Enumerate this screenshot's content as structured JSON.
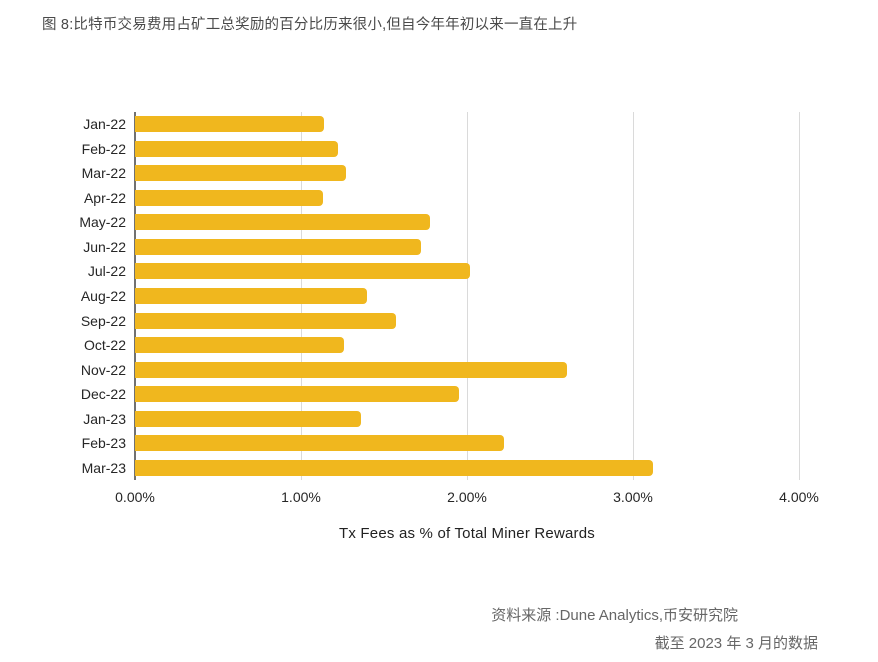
{
  "figure": {
    "title": "图 8:比特币交易费用占矿工总奖励的百分比历来很小,但自今年年初以来一直在上升",
    "source_line1": "资料来源 :Dune Analytics,币安研究院",
    "source_line2": "截至 2023 年 3 月的数据"
  },
  "colors": {
    "bar": "#f0b71e",
    "axis_line": "#717171",
    "gridline": "#dadada",
    "title_text": "#4a4a4a",
    "tick_text": "#262626",
    "source_text": "#666666"
  },
  "chart_data": {
    "type": "bar",
    "orientation": "horizontal",
    "title": "图 8:比特币交易费用占矿工总奖励的百分比历来很小,但自今年年初以来一直在上升",
    "xlabel": "Tx Fees as % of Total Miner Rewards",
    "ylabel": "",
    "categories": [
      "Jan-22",
      "Feb-22",
      "Mar-22",
      "Apr-22",
      "May-22",
      "Jun-22",
      "Jul-22",
      "Aug-22",
      "Sep-22",
      "Oct-22",
      "Nov-22",
      "Dec-22",
      "Jan-23",
      "Feb-23",
      "Mar-23"
    ],
    "values": [
      1.14,
      1.22,
      1.27,
      1.13,
      1.78,
      1.72,
      2.02,
      1.4,
      1.57,
      1.26,
      2.6,
      1.95,
      1.36,
      2.22,
      3.12
    ],
    "value_unit": "%",
    "xlim": [
      0,
      4
    ],
    "x_ticks": [
      {
        "value": 0,
        "label": "0.00%"
      },
      {
        "value": 1,
        "label": "1.00%"
      },
      {
        "value": 2,
        "label": "2.00%"
      },
      {
        "value": 3,
        "label": "3.00%"
      },
      {
        "value": 4,
        "label": "4.00%"
      }
    ],
    "grid": "vertical-on",
    "legend": "none"
  }
}
